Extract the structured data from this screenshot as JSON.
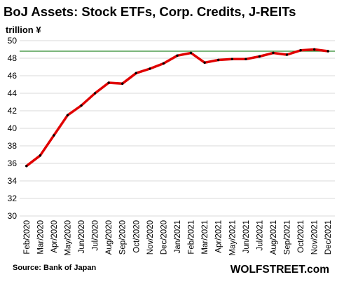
{
  "chart_data": {
    "type": "line",
    "title": "BoJ Assets: Stock ETFs, Corp. Credits, J-REITs",
    "ylabel": "trillion ¥",
    "xlabel": "",
    "ylim": [
      30,
      50
    ],
    "yticks": [
      30,
      32,
      34,
      36,
      38,
      40,
      42,
      44,
      46,
      48,
      50
    ],
    "grid": "horizontal",
    "legend": "none",
    "categories": [
      "Feb/2020",
      "Mar/2020",
      "Apr/2020",
      "May/2020",
      "Jun/2020",
      "Jul/2020",
      "Aug/2020",
      "Sep/2020",
      "Oct/2020",
      "Nov/2020",
      "Dec/2020",
      "Jan/2021",
      "Feb/2021",
      "Mar/2021",
      "Apr/2021",
      "May/2021",
      "Jun/2021",
      "Jul/2021",
      "Aug/2021",
      "Sep/2021",
      "Oct/2021",
      "Nov/2021",
      "Dec/2021"
    ],
    "series": [
      {
        "values": [
          35.7,
          36.9,
          39.2,
          41.5,
          42.6,
          44.0,
          45.2,
          45.1,
          46.3,
          46.8,
          47.4,
          48.3,
          48.6,
          47.5,
          47.8,
          47.9,
          47.9,
          48.2,
          48.6,
          48.4,
          48.9,
          49.0,
          48.8
        ],
        "color": "#e00000"
      }
    ],
    "reference_line": {
      "value": 48.8,
      "color": "#2e8b2e"
    },
    "source": "Source: Bank of Japan",
    "brand": "WOLFSTREET.com",
    "colors": {
      "line": "#e00000",
      "marker": "#000000",
      "reference": "#2e8b2e",
      "grid": "#d9d9d9"
    }
  }
}
